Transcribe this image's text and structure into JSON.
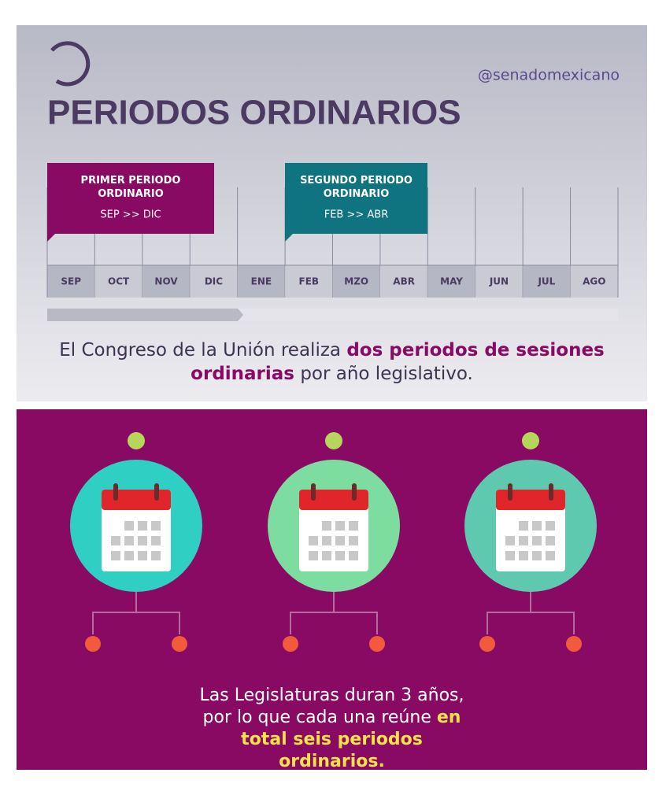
{
  "header": {
    "handle": "@senadomexicano",
    "title": "PERIODOS ORDINARIOS"
  },
  "periods": [
    {
      "title": "PRIMER PERIODO ORDINARIO",
      "range": "SEP >> DIC"
    },
    {
      "title": "SEGUNDO PERIODO ORDINARIO",
      "range": "FEB >> ABR"
    }
  ],
  "months": [
    "SEP",
    "OCT",
    "NOV",
    "DIC",
    "ENE",
    "FEB",
    "MZO",
    "ABR",
    "MAY",
    "JUN",
    "JUL",
    "AGO"
  ],
  "paragraph_1": {
    "before": "El Congreso de la Unión realiza",
    "highlight": "dos periodos de sesiones ordinarias",
    "after": "por año legislativo."
  },
  "paragraph_2": {
    "before": "Las Legislaturas duran 3 años, por lo que cada una reúne",
    "highlight": "en total seis periodos ordinarios."
  }
}
